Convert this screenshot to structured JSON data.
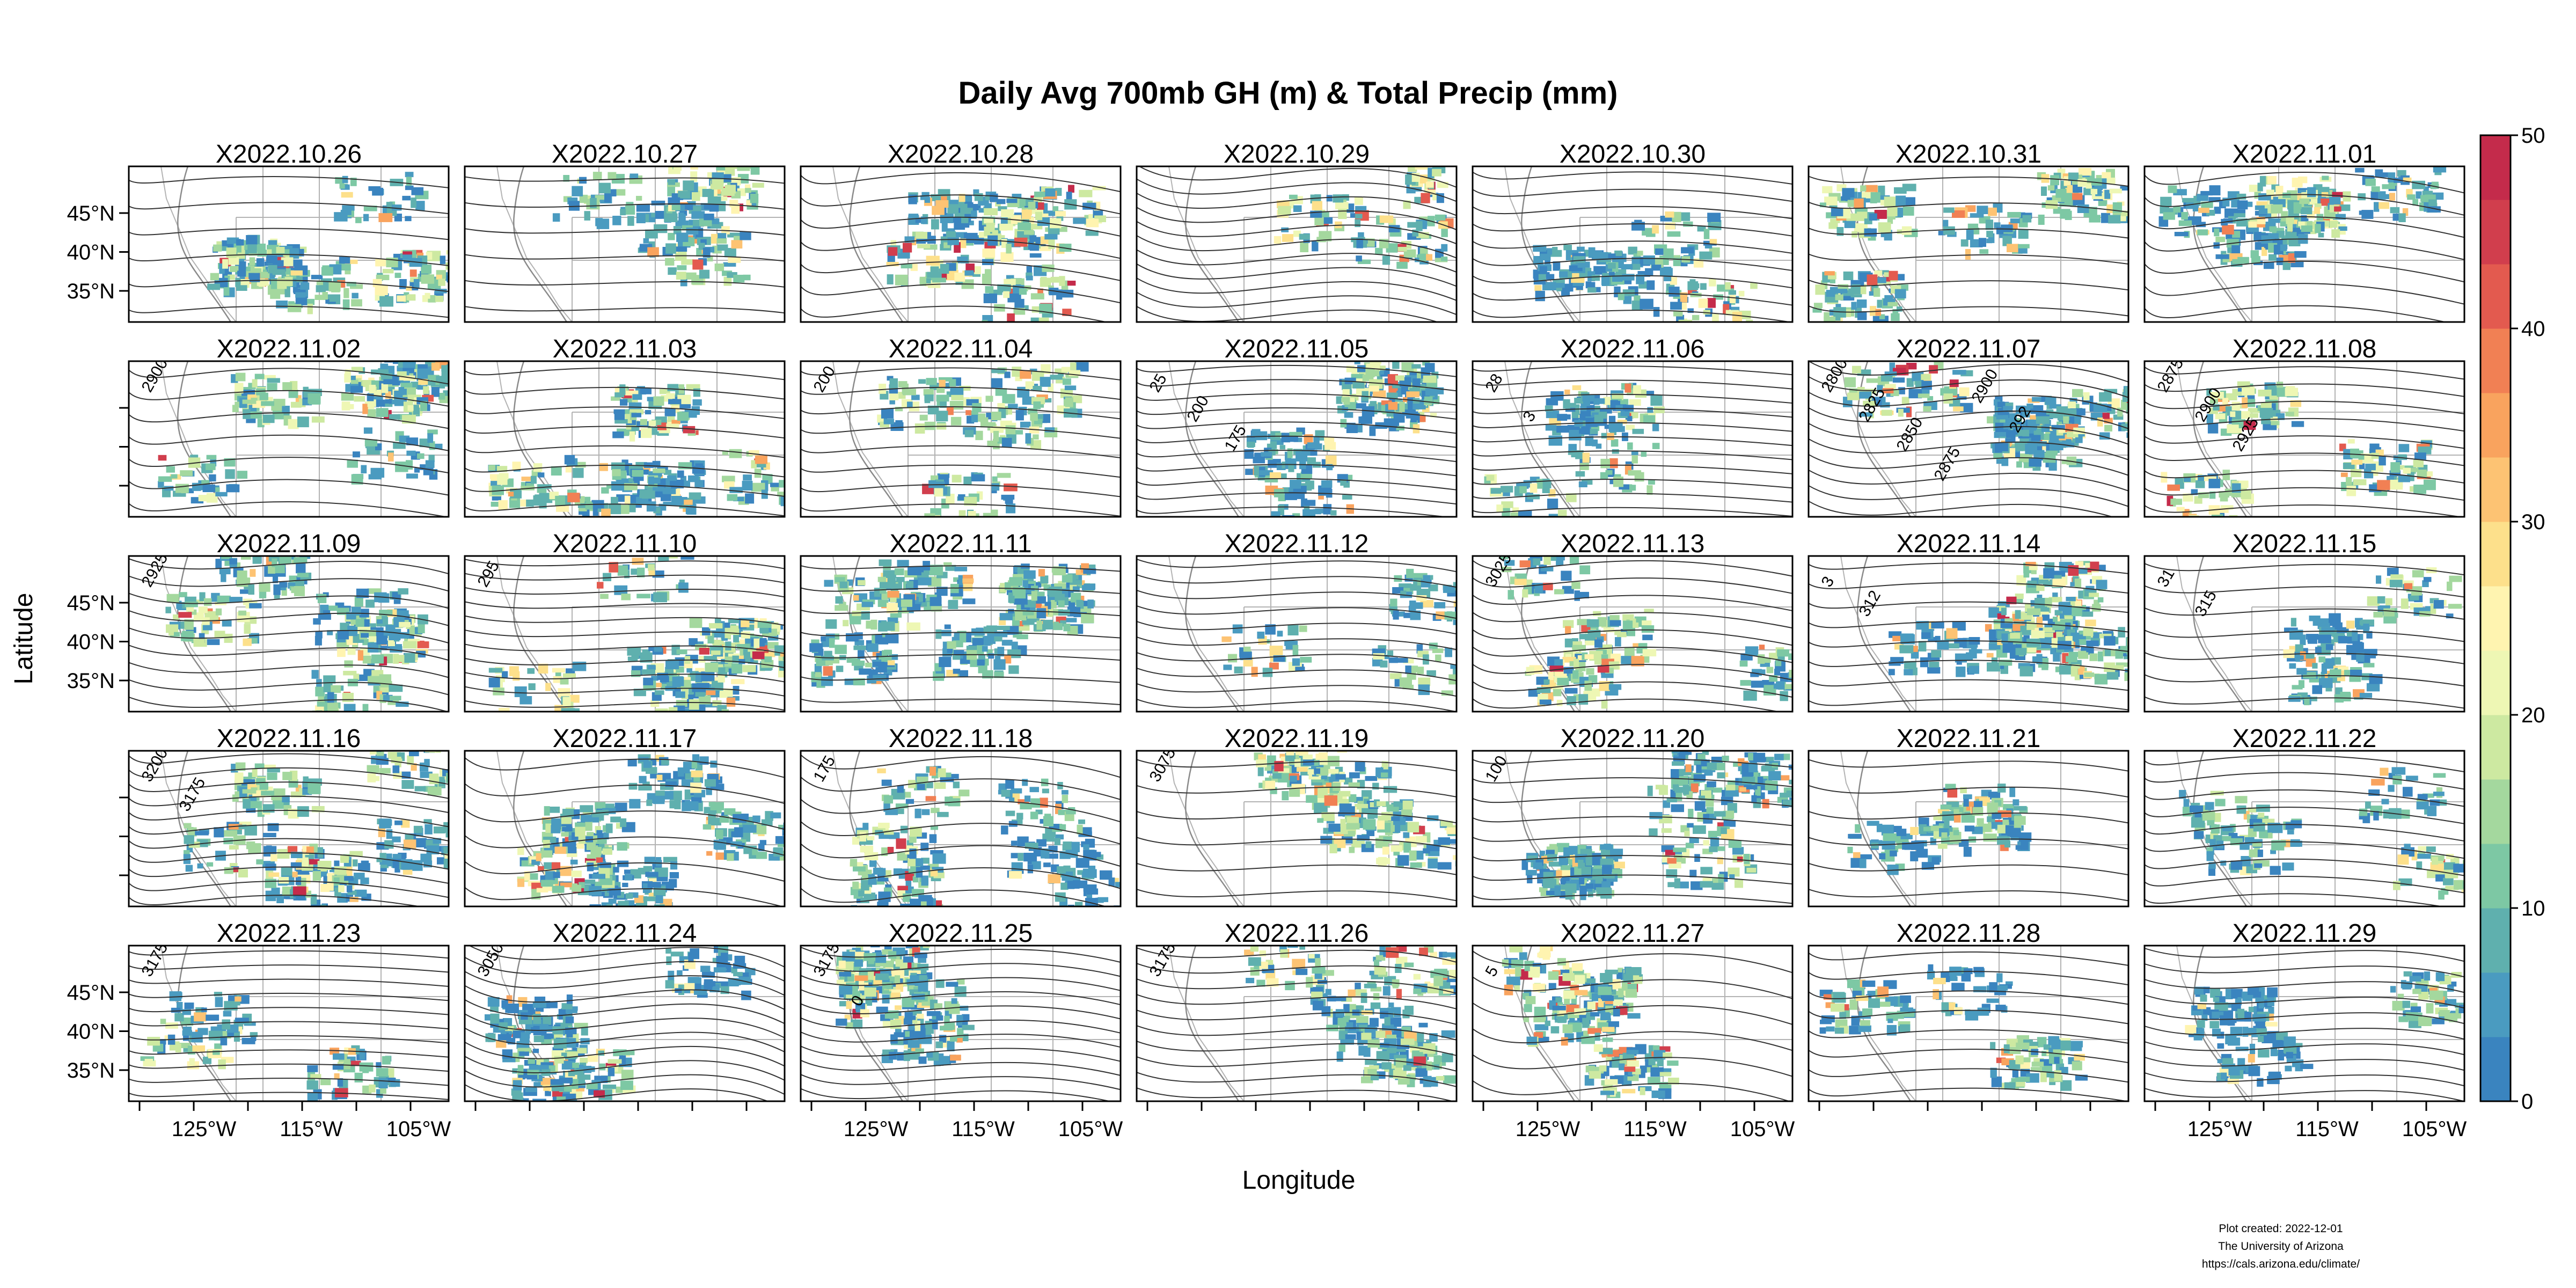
{
  "chart_data": {
    "type": "heatmap",
    "title": "Daily Avg 700mb GH (m) & Total Precip (mm)",
    "xlabel": "Longitude",
    "ylabel": "Latitude",
    "xticks": [
      "125°W",
      "115°W",
      "105°W"
    ],
    "yticks": [
      "45°N",
      "40°N",
      "35°N"
    ],
    "layout": {
      "rows": 5,
      "cols": 7
    },
    "panels": [
      "X2022.10.26",
      "X2022.10.27",
      "X2022.10.28",
      "X2022.10.29",
      "X2022.10.30",
      "X2022.10.31",
      "X2022.11.01",
      "X2022.11.02",
      "X2022.11.03",
      "X2022.11.04",
      "X2022.11.05",
      "X2022.11.06",
      "X2022.11.07",
      "X2022.11.08",
      "X2022.11.09",
      "X2022.11.10",
      "X2022.11.11",
      "X2022.11.12",
      "X2022.11.13",
      "X2022.11.14",
      "X2022.11.15",
      "X2022.11.16",
      "X2022.11.17",
      "X2022.11.18",
      "X2022.11.19",
      "X2022.11.20",
      "X2022.11.21",
      "X2022.11.22",
      "X2022.11.23",
      "X2022.11.24",
      "X2022.11.25",
      "X2022.11.26",
      "X2022.11.27",
      "X2022.11.28",
      "X2022.11.29"
    ],
    "colorbar": {
      "min": 0,
      "max": 50,
      "ticks": [
        "0",
        "10",
        "20",
        "30",
        "40",
        "50"
      ],
      "colors": [
        "#3a84bf",
        "#4a9bc0",
        "#5fb0ae",
        "#7dc8a4",
        "#a4d89e",
        "#cde9a1",
        "#eef7b4",
        "#fff4b0",
        "#fde08b",
        "#fdc373",
        "#f9a35e",
        "#f18054",
        "#e35a4f",
        "#d13e4d",
        "#c42b4b"
      ]
    },
    "contour_labels": [
      {
        "panel": "X2022.11.02",
        "text": "2900"
      },
      {
        "panel": "X2022.11.04",
        "text": "200"
      },
      {
        "panel": "X2022.11.05",
        "text": "25"
      },
      {
        "panel": "X2022.11.05",
        "text": "200"
      },
      {
        "panel": "X2022.11.05",
        "text": "175"
      },
      {
        "panel": "X2022.11.06",
        "text": "28"
      },
      {
        "panel": "X2022.11.06",
        "text": "3"
      },
      {
        "panel": "X2022.11.07",
        "text": "2800"
      },
      {
        "panel": "X2022.11.07",
        "text": "2825"
      },
      {
        "panel": "X2022.11.07",
        "text": "2850"
      },
      {
        "panel": "X2022.11.07",
        "text": "2875"
      },
      {
        "panel": "X2022.11.07",
        "text": "2900"
      },
      {
        "panel": "X2022.11.07",
        "text": "292"
      },
      {
        "panel": "X2022.11.08",
        "text": "2875"
      },
      {
        "panel": "X2022.11.08",
        "text": "2900"
      },
      {
        "panel": "X2022.11.08",
        "text": "2925"
      },
      {
        "panel": "X2022.11.09",
        "text": "2925"
      },
      {
        "panel": "X2022.11.10",
        "text": "295"
      },
      {
        "panel": "X2022.11.13",
        "text": "3025"
      },
      {
        "panel": "X2022.11.14",
        "text": "3"
      },
      {
        "panel": "X2022.11.14",
        "text": "312"
      },
      {
        "panel": "X2022.11.15",
        "text": "31"
      },
      {
        "panel": "X2022.11.15",
        "text": "315"
      },
      {
        "panel": "X2022.11.16",
        "text": "3200"
      },
      {
        "panel": "X2022.11.16",
        "text": "3175"
      },
      {
        "panel": "X2022.11.18",
        "text": "175"
      },
      {
        "panel": "X2022.11.19",
        "text": "3075"
      },
      {
        "panel": "X2022.11.20",
        "text": "100"
      },
      {
        "panel": "X2022.11.23",
        "text": "3175"
      },
      {
        "panel": "X2022.11.24",
        "text": "3050"
      },
      {
        "panel": "X2022.11.25",
        "text": "3175"
      },
      {
        "panel": "X2022.11.25",
        "text": "0"
      },
      {
        "panel": "X2022.11.26",
        "text": "3175"
      },
      {
        "panel": "X2022.11.27",
        "text": "5"
      }
    ]
  },
  "footer": {
    "created": "Plot created: 2022-12-01",
    "org": "The University of Arizona",
    "url": "https://cals.arizona.edu/climate/"
  }
}
